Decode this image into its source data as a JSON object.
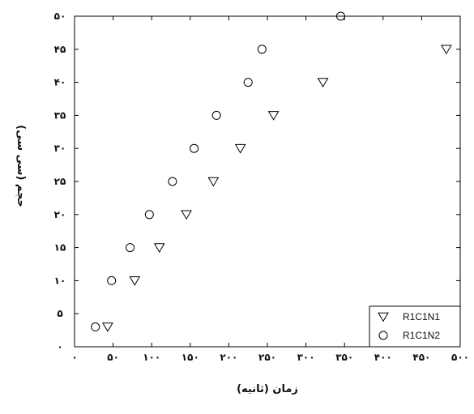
{
  "chart_data": {
    "type": "scatter",
    "xlabel": "زمان (ثانیه)",
    "ylabel": "حجم (سی سی)",
    "xlim": [
      0,
      500
    ],
    "ylim": [
      0,
      50
    ],
    "x_ticks": [
      0,
      50,
      100,
      150,
      200,
      250,
      300,
      350,
      400,
      450,
      500
    ],
    "x_tick_labels": [
      "٠",
      "۵٠",
      "١٠٠",
      "١۵٠",
      "٢٠٠",
      "٢۵٠",
      "٣٠٠",
      "٣۵٠",
      "۴٠٠",
      "۴۵٠",
      "۵٠٠"
    ],
    "y_ticks": [
      0,
      5,
      10,
      15,
      20,
      25,
      30,
      35,
      40,
      45,
      50
    ],
    "y_tick_labels": [
      "٠",
      "۵",
      "١٠",
      "١۵",
      "٢٠",
      "٢۵",
      "٣٠",
      "٣۵",
      "۴٠",
      "۴۵",
      "۵٠"
    ],
    "grid": false,
    "legend_position": "bottom-right",
    "series": [
      {
        "name": "R1C1N1",
        "marker": "triangle-down",
        "points": [
          {
            "x": 43,
            "y": 3
          },
          {
            "x": 78,
            "y": 10
          },
          {
            "x": 110,
            "y": 15
          },
          {
            "x": 145,
            "y": 20
          },
          {
            "x": 180,
            "y": 25
          },
          {
            "x": 215,
            "y": 30
          },
          {
            "x": 258,
            "y": 35
          },
          {
            "x": 322,
            "y": 40
          },
          {
            "x": 482,
            "y": 45
          }
        ]
      },
      {
        "name": "R1C1N2",
        "marker": "circle",
        "points": [
          {
            "x": 27,
            "y": 3
          },
          {
            "x": 48,
            "y": 10
          },
          {
            "x": 72,
            "y": 15
          },
          {
            "x": 97,
            "y": 20
          },
          {
            "x": 127,
            "y": 25
          },
          {
            "x": 155,
            "y": 30
          },
          {
            "x": 184,
            "y": 35
          },
          {
            "x": 225,
            "y": 40
          },
          {
            "x": 243,
            "y": 45
          },
          {
            "x": 345,
            "y": 50
          }
        ]
      }
    ]
  }
}
